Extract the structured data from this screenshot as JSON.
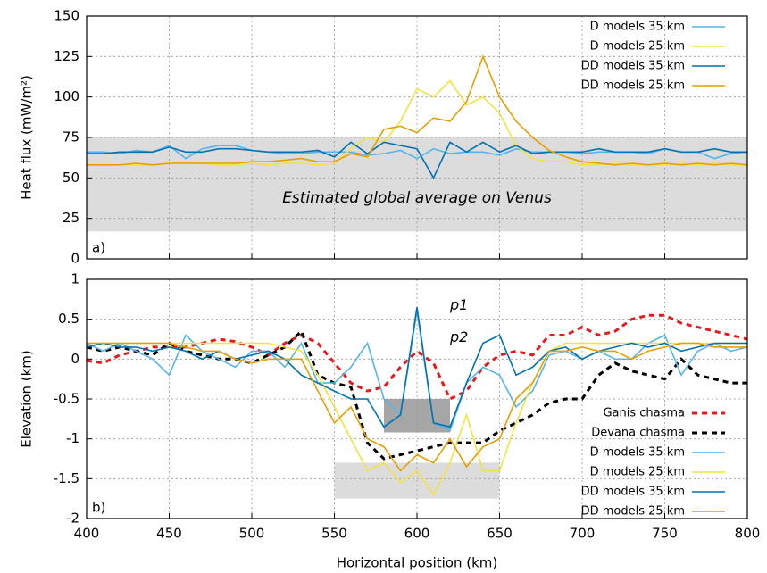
{
  "chart_data": [
    {
      "type": "line",
      "ylabel": "Heat flux (mW/m²)",
      "panel_label": "a)",
      "annotations": [
        "Estimated global average on Venus"
      ],
      "x": [
        400,
        410,
        420,
        430,
        440,
        450,
        460,
        470,
        480,
        490,
        500,
        510,
        520,
        530,
        540,
        550,
        560,
        570,
        580,
        590,
        600,
        610,
        620,
        630,
        640,
        650,
        660,
        670,
        680,
        690,
        700,
        710,
        720,
        730,
        740,
        750,
        760,
        770,
        780,
        790,
        800
      ],
      "xlim": [
        400,
        800
      ],
      "xticks": [
        400,
        450,
        500,
        550,
        600,
        650,
        700,
        750,
        800
      ],
      "show_xtick_labels": false,
      "ylim": [
        0,
        150
      ],
      "yticks": [
        0,
        25,
        50,
        75,
        100,
        125,
        150
      ],
      "grid": true,
      "legend": "top-right",
      "bands": [
        {
          "y": [
            17,
            75
          ],
          "color": "#dcdcdc"
        }
      ],
      "series": [
        {
          "name": "D models 35 km",
          "color": "#56b4e9",
          "style": "solid",
          "values": [
            66,
            66,
            65,
            67,
            66,
            70,
            62,
            68,
            70,
            70,
            67,
            66,
            65,
            65,
            66,
            66,
            66,
            64,
            65,
            67,
            62,
            68,
            65,
            66,
            66,
            64,
            68,
            66,
            66,
            66,
            65,
            66,
            66,
            66,
            65,
            68,
            66,
            66,
            62,
            65,
            66
          ]
        },
        {
          "name": "D models 25 km",
          "color": "#f0e442",
          "style": "solid",
          "values": [
            58,
            58,
            58,
            58,
            58,
            59,
            59,
            59,
            58,
            58,
            59,
            58,
            59,
            59,
            58,
            59,
            68,
            75,
            72,
            85,
            105,
            100,
            110,
            95,
            100,
            90,
            70,
            62,
            60,
            60,
            58,
            58,
            59,
            58,
            58,
            58,
            59,
            58,
            59,
            58,
            58
          ]
        },
        {
          "name": "DD models 35 km",
          "color": "#0072b2",
          "style": "solid",
          "values": [
            65,
            65,
            66,
            66,
            66,
            69,
            66,
            66,
            68,
            68,
            67,
            66,
            66,
            66,
            67,
            63,
            72,
            65,
            72,
            70,
            68,
            50,
            72,
            66,
            72,
            66,
            70,
            65,
            66,
            66,
            66,
            68,
            66,
            66,
            66,
            68,
            66,
            66,
            68,
            66,
            66
          ]
        },
        {
          "name": "DD models 25 km",
          "color": "#e69f00",
          "style": "solid",
          "values": [
            58,
            58,
            58,
            59,
            58,
            59,
            59,
            59,
            59,
            59,
            60,
            60,
            61,
            62,
            60,
            60,
            65,
            63,
            80,
            82,
            78,
            87,
            85,
            97,
            125,
            100,
            85,
            75,
            67,
            63,
            60,
            59,
            58,
            59,
            58,
            59,
            58,
            59,
            58,
            59,
            58
          ]
        }
      ]
    },
    {
      "type": "line",
      "xlabel": "Horizontal position (km)",
      "ylabel": "Elevation (km)",
      "panel_label": "b)",
      "annotations": [
        "p1",
        "p2"
      ],
      "x": [
        400,
        410,
        420,
        430,
        440,
        450,
        460,
        470,
        480,
        490,
        500,
        510,
        520,
        530,
        540,
        550,
        560,
        570,
        580,
        590,
        600,
        610,
        620,
        630,
        640,
        650,
        660,
        670,
        680,
        690,
        700,
        710,
        720,
        730,
        740,
        750,
        760,
        770,
        780,
        790,
        800
      ],
      "xlim": [
        400,
        800
      ],
      "xticks": [
        400,
        450,
        500,
        550,
        600,
        650,
        700,
        750,
        800
      ],
      "show_xtick_labels": true,
      "ylim": [
        -2,
        1
      ],
      "yticks": [
        -2,
        -1.5,
        -1,
        -0.5,
        0,
        0.5,
        1
      ],
      "grid": true,
      "legend": "bottom-right",
      "boxes": [
        {
          "x": [
            580,
            620
          ],
          "y": [
            -0.92,
            -0.5
          ],
          "color": "#a6a6a6"
        },
        {
          "x": [
            550,
            650
          ],
          "y": [
            -1.75,
            -1.3
          ],
          "color": "#dcdcdc"
        }
      ],
      "series": [
        {
          "name": "Ganis chasma",
          "color": "#e41a1c",
          "style": "dashed",
          "values": [
            -0.02,
            -0.05,
            0.05,
            0.1,
            0.15,
            0.15,
            0.15,
            0.2,
            0.25,
            0.22,
            0.15,
            0.05,
            0.2,
            0.3,
            0.2,
            -0.05,
            -0.3,
            -0.4,
            -0.35,
            -0.1,
            0.1,
            -0.05,
            -0.5,
            -0.4,
            -0.1,
            0.05,
            0.1,
            0.05,
            0.3,
            0.3,
            0.4,
            0.3,
            0.35,
            0.5,
            0.55,
            0.55,
            0.45,
            0.4,
            0.35,
            0.3,
            0.25
          ]
        },
        {
          "name": "Devana chasma",
          "color": "#000000",
          "style": "dashed",
          "values": [
            0.15,
            0.1,
            0.15,
            0.1,
            0.05,
            0.2,
            0.1,
            0.05,
            0,
            0,
            -0.05,
            0.05,
            0.15,
            0.35,
            -0.2,
            -0.3,
            -0.35,
            -1.05,
            -1.25,
            -1.2,
            -1.15,
            -1.1,
            -1.05,
            -1.05,
            -1.05,
            -0.9,
            -0.8,
            -0.7,
            -0.55,
            -0.5,
            -0.5,
            -0.2,
            -0.05,
            -0.15,
            -0.2,
            -0.25,
            0,
            -0.2,
            -0.25,
            -0.3,
            -0.3
          ]
        },
        {
          "name": "D models 35 km",
          "color": "#56b4e9",
          "style": "solid",
          "values": [
            0.2,
            0.1,
            0.2,
            0.1,
            0,
            -0.2,
            0.3,
            0.1,
            0,
            -0.1,
            0.1,
            0.1,
            -0.1,
            0.2,
            -0.3,
            -0.3,
            -0.1,
            0.2,
            -0.5,
            -0.7,
            0.6,
            -0.8,
            -0.9,
            -0.3,
            -0.1,
            -0.2,
            -0.6,
            -0.4,
            0.05,
            0.1,
            0,
            0.1,
            0,
            0,
            0.2,
            0.3,
            -0.2,
            0.1,
            0.2,
            0.1,
            0.15
          ]
        },
        {
          "name": "D models 25 km",
          "color": "#f0e442",
          "style": "solid",
          "values": [
            0.2,
            0.2,
            0.2,
            0.2,
            0.2,
            0.2,
            0.2,
            0.2,
            0.2,
            0.2,
            0.2,
            0.2,
            0.15,
            0.1,
            -0.2,
            -0.6,
            -1,
            -1.4,
            -1.3,
            -1.55,
            -1.4,
            -1.7,
            -1.3,
            -0.7,
            -1.4,
            -1.4,
            -0.8,
            -0.3,
            0.1,
            0.2,
            0.2,
            0.2,
            0.2,
            0.2,
            0.2,
            0.2,
            0.2,
            0.2,
            0.2,
            0.2,
            0.2
          ]
        },
        {
          "name": "DD models 35 km",
          "color": "#0072b2",
          "style": "solid",
          "values": [
            0.15,
            0.2,
            0.15,
            0.15,
            0.1,
            0.15,
            0.1,
            0,
            0.1,
            0,
            0.05,
            0.1,
            0,
            -0.2,
            -0.3,
            -0.4,
            -0.5,
            -0.5,
            -0.85,
            -0.7,
            0.65,
            -0.8,
            -0.85,
            -0.3,
            0.2,
            0.3,
            -0.2,
            -0.1,
            0.1,
            0.15,
            0,
            0.1,
            0.15,
            0.2,
            0.15,
            0.2,
            0.1,
            0.15,
            0.2,
            0.2,
            0.2
          ]
        },
        {
          "name": "DD models 25 km",
          "color": "#e69f00",
          "style": "solid",
          "values": [
            0.2,
            0.2,
            0.2,
            0.2,
            0.2,
            0.2,
            0.15,
            0.1,
            0.1,
            0,
            -0.05,
            0,
            0,
            0,
            -0.4,
            -0.8,
            -0.6,
            -1,
            -1.1,
            -1.4,
            -1.2,
            -1.3,
            -1,
            -1.35,
            -1.1,
            -1,
            -0.5,
            -0.3,
            0.1,
            0.1,
            0.15,
            0.1,
            0.1,
            0,
            0.1,
            0.15,
            0.2,
            0.2,
            0.15,
            0.15,
            0.15
          ]
        }
      ]
    }
  ]
}
